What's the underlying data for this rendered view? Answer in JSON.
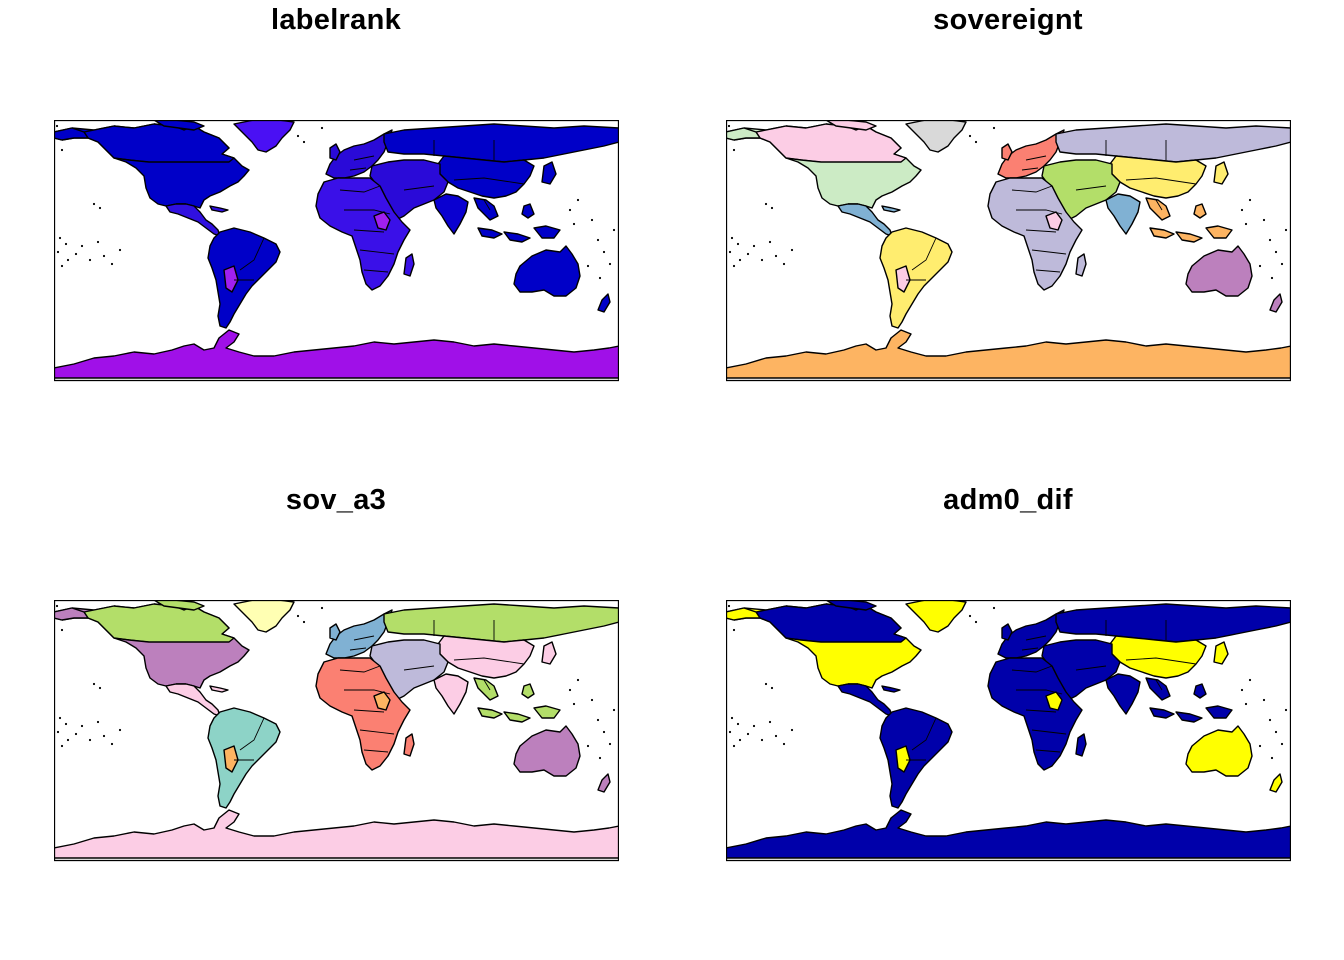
{
  "panels": [
    {
      "title": "labelrank",
      "colors": {
        "north_america": "#0000c8",
        "greenland": "#4a10f4",
        "south_america": "#0000c8",
        "central_america": "#3010e0",
        "europe": "#2a0ad8",
        "russia": "#0000c8",
        "asia": "#0000c8",
        "middle_east": "#2a0ad8",
        "africa": "#3a10e8",
        "south_asia": "#0a00d0",
        "southeast_asia": "#0000c8",
        "australia": "#0000c8",
        "antarctica": "#a010e8",
        "accent": "#a020f0"
      }
    },
    {
      "title": "sovereignt",
      "colors": {
        "north_america": "#ccebc5",
        "greenland": "#d9d9d9",
        "south_america": "#ffed6f",
        "central_america": "#80b1d3",
        "europe": "#fb8072",
        "russia": "#bebada",
        "asia": "#ffed6f",
        "middle_east": "#b3de69",
        "africa": "#bebada",
        "south_asia": "#80b1d3",
        "southeast_asia": "#fdb462",
        "australia": "#bc80bd",
        "antarctica": "#fdb462",
        "accent": "#fccde5",
        "canada": "#fccde5"
      }
    },
    {
      "title": "sov_a3",
      "colors": {
        "north_america": "#bc80bd",
        "greenland": "#ffffb3",
        "south_america": "#8dd3c7",
        "central_america": "#fccde5",
        "europe": "#80b1d3",
        "russia": "#b3de69",
        "asia": "#fccde5",
        "middle_east": "#bebada",
        "africa": "#fb8072",
        "south_asia": "#fccde5",
        "southeast_asia": "#b3de69",
        "australia": "#bc80bd",
        "antarctica": "#fccde5",
        "accent": "#fdb462",
        "canada": "#b3de69"
      }
    },
    {
      "title": "adm0_dif",
      "colors": {
        "north_america": "#ffff00",
        "greenland": "#ffff00",
        "south_america": "#0000aa",
        "central_america": "#0000aa",
        "europe": "#0000aa",
        "russia": "#0000aa",
        "asia": "#ffff00",
        "middle_east": "#0000aa",
        "africa": "#0000aa",
        "south_asia": "#0000aa",
        "southeast_asia": "#0000aa",
        "australia": "#ffff00",
        "antarctica": "#0000aa",
        "accent": "#ffff00",
        "canada": "#0000aa"
      }
    }
  ]
}
